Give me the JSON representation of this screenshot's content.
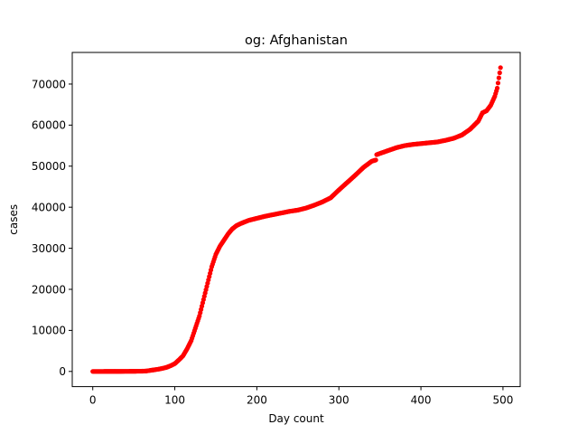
{
  "chart_data": {
    "type": "scatter",
    "title": "og: Afghanistan",
    "xlabel": "Day count",
    "ylabel": "cases",
    "xlim": [
      -25,
      521
    ],
    "ylim": [
      -3700,
      77700
    ],
    "xticks": [
      0,
      100,
      200,
      300,
      400,
      500
    ],
    "yticks": [
      0,
      10000,
      20000,
      30000,
      40000,
      50000,
      60000,
      70000
    ],
    "grid": false,
    "legend": "none",
    "marker_color": "#ff0000",
    "series": [
      {
        "points": [
          [
            0,
            0
          ],
          [
            20,
            5
          ],
          [
            40,
            20
          ],
          [
            60,
            60
          ],
          [
            65,
            100
          ],
          [
            70,
            250
          ],
          [
            75,
            400
          ],
          [
            80,
            550
          ],
          [
            85,
            750
          ],
          [
            90,
            1000
          ],
          [
            95,
            1400
          ],
          [
            100,
            1900
          ],
          [
            105,
            2800
          ],
          [
            110,
            3800
          ],
          [
            115,
            5500
          ],
          [
            120,
            7500
          ],
          [
            125,
            10500
          ],
          [
            130,
            13500
          ],
          [
            135,
            17500
          ],
          [
            140,
            21500
          ],
          [
            145,
            25500
          ],
          [
            150,
            28500
          ],
          [
            155,
            30500
          ],
          [
            160,
            32000
          ],
          [
            165,
            33500
          ],
          [
            170,
            34700
          ],
          [
            175,
            35500
          ],
          [
            180,
            36000
          ],
          [
            190,
            36800
          ],
          [
            200,
            37300
          ],
          [
            210,
            37800
          ],
          [
            220,
            38200
          ],
          [
            230,
            38600
          ],
          [
            240,
            39000
          ],
          [
            250,
            39300
          ],
          [
            260,
            39800
          ],
          [
            270,
            40500
          ],
          [
            280,
            41300
          ],
          [
            290,
            42300
          ],
          [
            300,
            44200
          ],
          [
            310,
            46000
          ],
          [
            320,
            47800
          ],
          [
            330,
            49700
          ],
          [
            340,
            51200
          ],
          [
            345,
            51500
          ],
          [
            346,
            52800
          ],
          [
            350,
            53100
          ],
          [
            360,
            53800
          ],
          [
            370,
            54500
          ],
          [
            380,
            55000
          ],
          [
            390,
            55300
          ],
          [
            400,
            55500
          ],
          [
            410,
            55700
          ],
          [
            420,
            55900
          ],
          [
            430,
            56300
          ],
          [
            440,
            56800
          ],
          [
            450,
            57600
          ],
          [
            460,
            59000
          ],
          [
            470,
            61000
          ],
          [
            475,
            63000
          ],
          [
            480,
            63500
          ],
          [
            485,
            64800
          ],
          [
            490,
            67000
          ],
          [
            493,
            69000
          ],
          [
            495,
            71500
          ],
          [
            497,
            74000
          ]
        ]
      }
    ]
  }
}
